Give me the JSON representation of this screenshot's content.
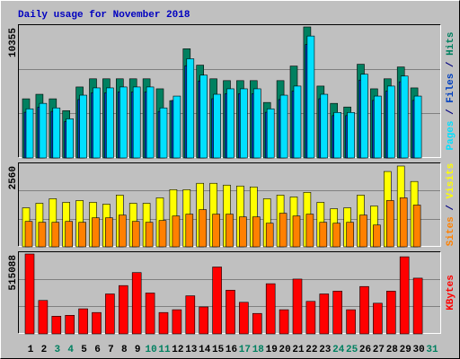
{
  "chart_data": [
    {
      "type": "bar",
      "title": "Daily usage for November 2018",
      "legend_separator": " / ",
      "ylim": [
        0,
        10355
      ],
      "yticks": [
        10355
      ],
      "series": [
        {
          "name": "Hits",
          "color": "#008060",
          "values": [
            4674,
            5033,
            4674,
            3739,
            5609,
            6256,
            6256,
            6256,
            6256,
            6256,
            5465,
            4530,
            8629,
            7334,
            6256,
            6112,
            6112,
            6112,
            4386,
            6112,
            7263,
            10355,
            5681,
            4314,
            4027,
            7406,
            5465,
            6256,
            7191,
            5537,
            null
          ]
        },
        {
          "name": "Files",
          "color": "#0040c0",
          "values": [
            3611,
            4012,
            3678,
            2876,
            4615,
            5149,
            5149,
            5216,
            5216,
            5216,
            3678,
            4548,
            7289,
            6086,
            4681,
            5082,
            5082,
            5082,
            3611,
            4615,
            5283,
            8961,
            4681,
            3343,
            3343,
            6153,
            4548,
            5283,
            6019,
            4548,
            null
          ]
        },
        {
          "name": "Pages",
          "color": "#00e0ff",
          "values": [
            3883,
            4314,
            3955,
            3092,
            4962,
            5537,
            5537,
            5609,
            5609,
            5609,
            3955,
            4890,
            7838,
            6544,
            5033,
            5465,
            5465,
            5465,
            3883,
            4962,
            5681,
            9636,
            5033,
            3595,
            3595,
            6616,
            4890,
            5681,
            6472,
            4890,
            null
          ]
        }
      ]
    },
    {
      "type": "bar",
      "legend_separator": " / ",
      "ylim": [
        0,
        2560
      ],
      "yticks": [
        2560
      ],
      "series": [
        {
          "name": "Visits",
          "color": "#ffff00",
          "values": [
            1223,
            1365,
            1508,
            1394,
            1451,
            1394,
            1337,
            1621,
            1365,
            1365,
            1536,
            1792,
            1792,
            1991,
            1991,
            1934,
            1906,
            1877,
            1508,
            1621,
            1564,
            1707,
            1394,
            1195,
            1223,
            1621,
            1280,
            2361,
            2532,
            2048,
            null
          ]
        },
        {
          "name": "Sites",
          "color": "#ff8000",
          "values": [
            796,
            768,
            768,
            796,
            768,
            910,
            910,
            996,
            796,
            768,
            825,
            967,
            1024,
            1166,
            1024,
            1024,
            939,
            939,
            740,
            1052,
            967,
            1024,
            768,
            740,
            768,
            996,
            683,
            1451,
            1536,
            1308,
            null
          ]
        }
      ]
    },
    {
      "type": "bar",
      "ylim": [
        0,
        515088
      ],
      "yticks": [
        515088
      ],
      "categories": [
        "1",
        "2",
        "3",
        "4",
        "5",
        "6",
        "7",
        "8",
        "9",
        "10",
        "11",
        "12",
        "13",
        "14",
        "15",
        "16",
        "17",
        "18",
        "19",
        "20",
        "21",
        "22",
        "23",
        "24",
        "25",
        "26",
        "27",
        "28",
        "29",
        "30",
        "31"
      ],
      "category_colors": [
        "#000000",
        "#000000",
        "#008060",
        "#008060",
        "#000000",
        "#000000",
        "#000000",
        "#000000",
        "#000000",
        "#008060",
        "#008060",
        "#000000",
        "#000000",
        "#000000",
        "#000000",
        "#000000",
        "#008060",
        "#008060",
        "#000000",
        "#000000",
        "#000000",
        "#000000",
        "#000000",
        "#008060",
        "#008060",
        "#000000",
        "#000000",
        "#000000",
        "#000000",
        "#000000",
        "#008060"
      ],
      "series": [
        {
          "name": "KBytes",
          "color": "#ff0000",
          "values": [
            515088,
            215618,
            113798,
            119788,
            161713,
            137756,
            257544,
            311449,
            395300,
            263533,
            137756,
            155724,
            245565,
            173691,
            431236,
            281502,
            203640,
            131767,
            323427,
            155724,
            353374,
            209629,
            257544,
            275512,
            155724,
            305459,
            197650,
            275512,
            497120,
            359363,
            null
          ]
        }
      ]
    }
  ]
}
